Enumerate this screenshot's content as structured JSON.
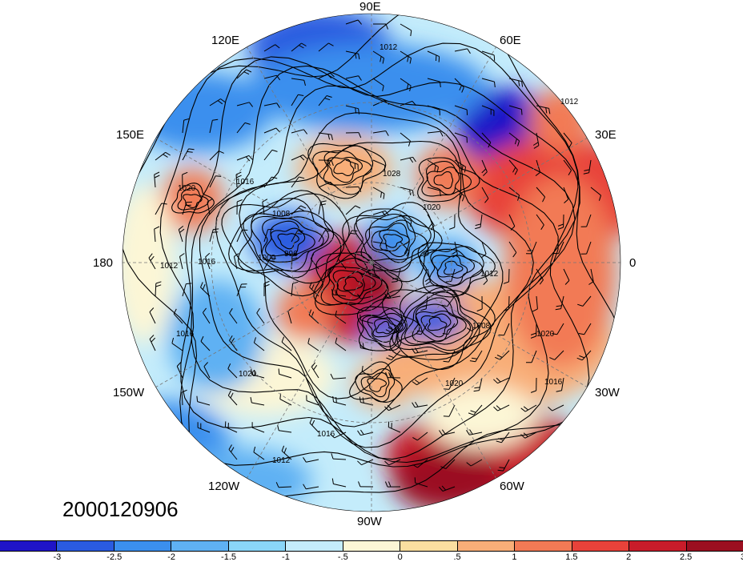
{
  "map": {
    "projection": "north-polar-stereographic",
    "longitude_labels": [
      {
        "key": "lon-90e",
        "text": "90E"
      },
      {
        "key": "lon-60e",
        "text": "60E"
      },
      {
        "key": "lon-30e",
        "text": "30E"
      },
      {
        "key": "lon-0",
        "text": "0"
      },
      {
        "key": "lon-30w",
        "text": "30W"
      },
      {
        "key": "lon-60w",
        "text": "60W"
      },
      {
        "key": "lon-90w",
        "text": "90W"
      },
      {
        "key": "lon-120w",
        "text": "120W"
      },
      {
        "key": "lon-150w",
        "text": "150W"
      },
      {
        "key": "lon-180",
        "text": "180"
      },
      {
        "key": "lon-150e",
        "text": "150E"
      },
      {
        "key": "lon-120e",
        "text": "120E"
      }
    ],
    "contour_labels": [
      "1012",
      "1016",
      "1020",
      "1028",
      "1008",
      "1000",
      "996"
    ],
    "date": "2000120906"
  },
  "colorbar": {
    "colors": [
      "#1f14c8",
      "#2a5be0",
      "#3b8fee",
      "#5fb1f3",
      "#8ad6f8",
      "#c4ecfb",
      "#fcf6d6",
      "#fbdfa0",
      "#f8ae78",
      "#f27a55",
      "#e8423a",
      "#c91c2a",
      "#9b0f20"
    ],
    "labels": [
      "-3",
      "-2.5",
      "-2",
      "-1.5",
      "-1",
      "-.5",
      "0",
      ".5",
      "1",
      "1.5",
      "2",
      "2.5",
      "3"
    ]
  }
}
